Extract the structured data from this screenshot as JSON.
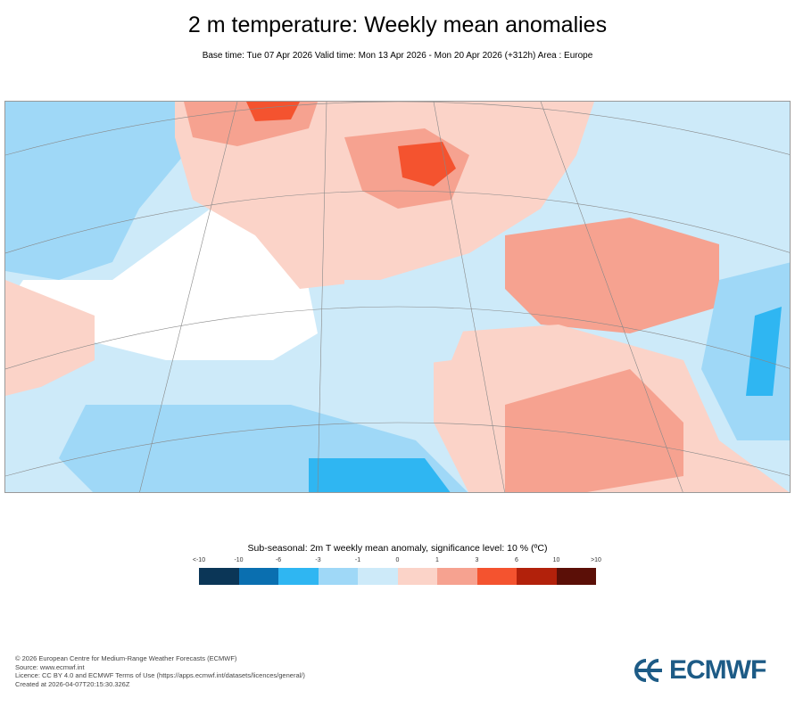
{
  "header": {
    "title": "2 m temperature: Weekly mean anomalies",
    "subtitle": "Base time: Tue 07 Apr 2026 Valid time: Mon 13 Apr 2026 - Mon 20 Apr 2026 (+312h) Area : Europe"
  },
  "map": {
    "area": "Europe",
    "background_color": "#cde9f8"
  },
  "legend": {
    "title": "Sub-seasonal: 2m T weekly mean anomaly, significance level: 10 % (ºC)",
    "labels": [
      "<-10",
      "-10",
      "-6",
      "-3",
      "-1",
      "0",
      "1",
      "3",
      "6",
      "10",
      ">10"
    ],
    "colors": [
      "#0b3657",
      "#0a6fb0",
      "#2fb6f2",
      "#9fd8f7",
      "#cdeaf9",
      "#fbd3c8",
      "#f6a290",
      "#f4532f",
      "#b2210b",
      "#5b0f07"
    ]
  },
  "footer": {
    "lines": [
      "© 2026 European Centre for Medium-Range Weather Forecasts (ECMWF)",
      "Source: www.ecmwf.int",
      "Licence: CC BY 4.0 and ECMWF Terms of Use (https://apps.ecmwf.int/datasets/licences/general/)",
      "Created at 2026-04-07T20:15:30.326Z"
    ]
  },
  "logo": {
    "text": "ECMWF",
    "color": "#1d5b86"
  }
}
